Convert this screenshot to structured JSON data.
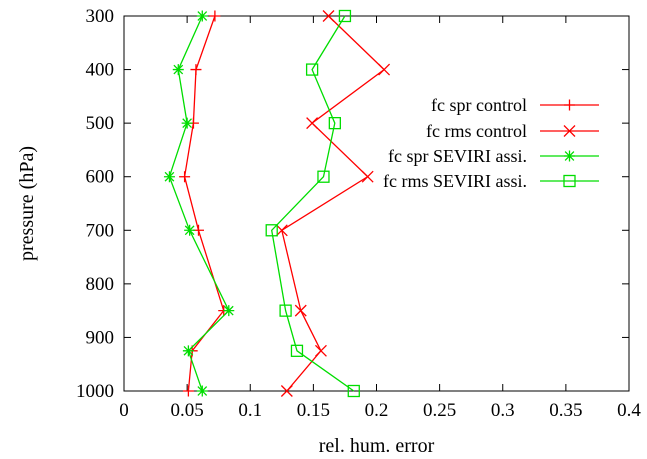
{
  "chart_data": {
    "type": "line",
    "xlabel": "rel. hum. error",
    "ylabel": "pressure (hPa)",
    "xlim": [
      0,
      0.4
    ],
    "ylim": [
      300,
      1000
    ],
    "y_reversed": true,
    "grid": false,
    "legend_position": "right",
    "x_ticks": [
      0,
      0.05,
      0.1,
      0.15,
      0.2,
      0.25,
      0.3,
      0.35,
      0.4
    ],
    "x_tick_labels": [
      "0",
      "0.05",
      "0.1",
      "0.15",
      "0.2",
      "0.25",
      "0.3",
      "0.35",
      "0.4"
    ],
    "y_ticks": [
      300,
      400,
      500,
      600,
      700,
      800,
      900,
      1000
    ],
    "y_tick_labels": [
      "300",
      "400",
      "500",
      "600",
      "700",
      "800",
      "900",
      "1000"
    ],
    "series": [
      {
        "name": "fc spr control",
        "color": "#ff0000",
        "marker": "plus",
        "points": [
          [
            0.072,
            300
          ],
          [
            0.057,
            400
          ],
          [
            0.055,
            500
          ],
          [
            0.048,
            600
          ],
          [
            0.059,
            700
          ],
          [
            0.079,
            850
          ],
          [
            0.054,
            925
          ],
          [
            0.051,
            1000
          ]
        ]
      },
      {
        "name": "fc rms control",
        "color": "#ff0000",
        "marker": "cross",
        "points": [
          [
            0.162,
            300
          ],
          [
            0.206,
            400
          ],
          [
            0.149,
            500
          ],
          [
            0.193,
            600
          ],
          [
            0.125,
            700
          ],
          [
            0.14,
            850
          ],
          [
            0.156,
            925
          ],
          [
            0.129,
            1000
          ]
        ]
      },
      {
        "name": "fc spr SEVIRI assi.",
        "color": "#00dd00",
        "marker": "star",
        "points": [
          [
            0.062,
            300
          ],
          [
            0.043,
            400
          ],
          [
            0.05,
            500
          ],
          [
            0.036,
            600
          ],
          [
            0.052,
            700
          ],
          [
            0.083,
            850
          ],
          [
            0.051,
            925
          ],
          [
            0.062,
            1000
          ]
        ]
      },
      {
        "name": "fc rms SEVIRI assi.",
        "color": "#00dd00",
        "marker": "square",
        "points": [
          [
            0.175,
            300
          ],
          [
            0.149,
            400
          ],
          [
            0.167,
            500
          ],
          [
            0.158,
            600
          ],
          [
            0.117,
            700
          ],
          [
            0.128,
            850
          ],
          [
            0.137,
            925
          ],
          [
            0.182,
            1000
          ]
        ]
      }
    ]
  }
}
